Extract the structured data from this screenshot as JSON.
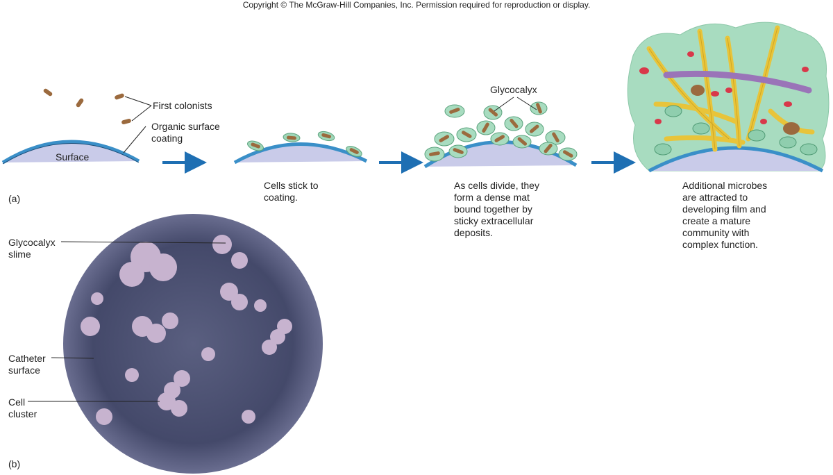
{
  "copyright": "Copyright © The McGraw-Hill Companies, Inc. Permission required for reproduction or display.",
  "panel_a": {
    "tag": "(a)",
    "labels": {
      "first_colonists": "First colonists",
      "organic_coating_line1": "Organic surface",
      "organic_coating_line2": "coating",
      "surface": "Surface",
      "glycocalyx": "Glycocalyx"
    },
    "captions": {
      "stage2": [
        "Cells stick to",
        "coating."
      ],
      "stage3": [
        "As cells divide, they",
        "form a dense mat",
        "bound together by",
        "sticky extracellular",
        "deposits."
      ],
      "stage4": [
        "Additional microbes",
        "are attracted to",
        "developing film and",
        "create a mature",
        "community with",
        "complex function."
      ]
    }
  },
  "panel_b": {
    "tag": "(b)",
    "labels": {
      "glycocalyx_line1": "Glycocalyx",
      "glycocalyx_line2": "slime",
      "catheter_line1": "Catheter",
      "catheter_line2": "surface",
      "cell_line1": "Cell",
      "cell_line2": "cluster"
    }
  },
  "colors": {
    "surface_fill": "#c9cbe9",
    "coating": "#3a8fc8",
    "arrow": "#1e6fb3",
    "cell": "#9b6a3e",
    "slime": "#9fd6b8",
    "fiber": "#e8c43a",
    "micrograph_bg": "#4a4f6e",
    "micrograph_cells": "#c7b3cf"
  }
}
